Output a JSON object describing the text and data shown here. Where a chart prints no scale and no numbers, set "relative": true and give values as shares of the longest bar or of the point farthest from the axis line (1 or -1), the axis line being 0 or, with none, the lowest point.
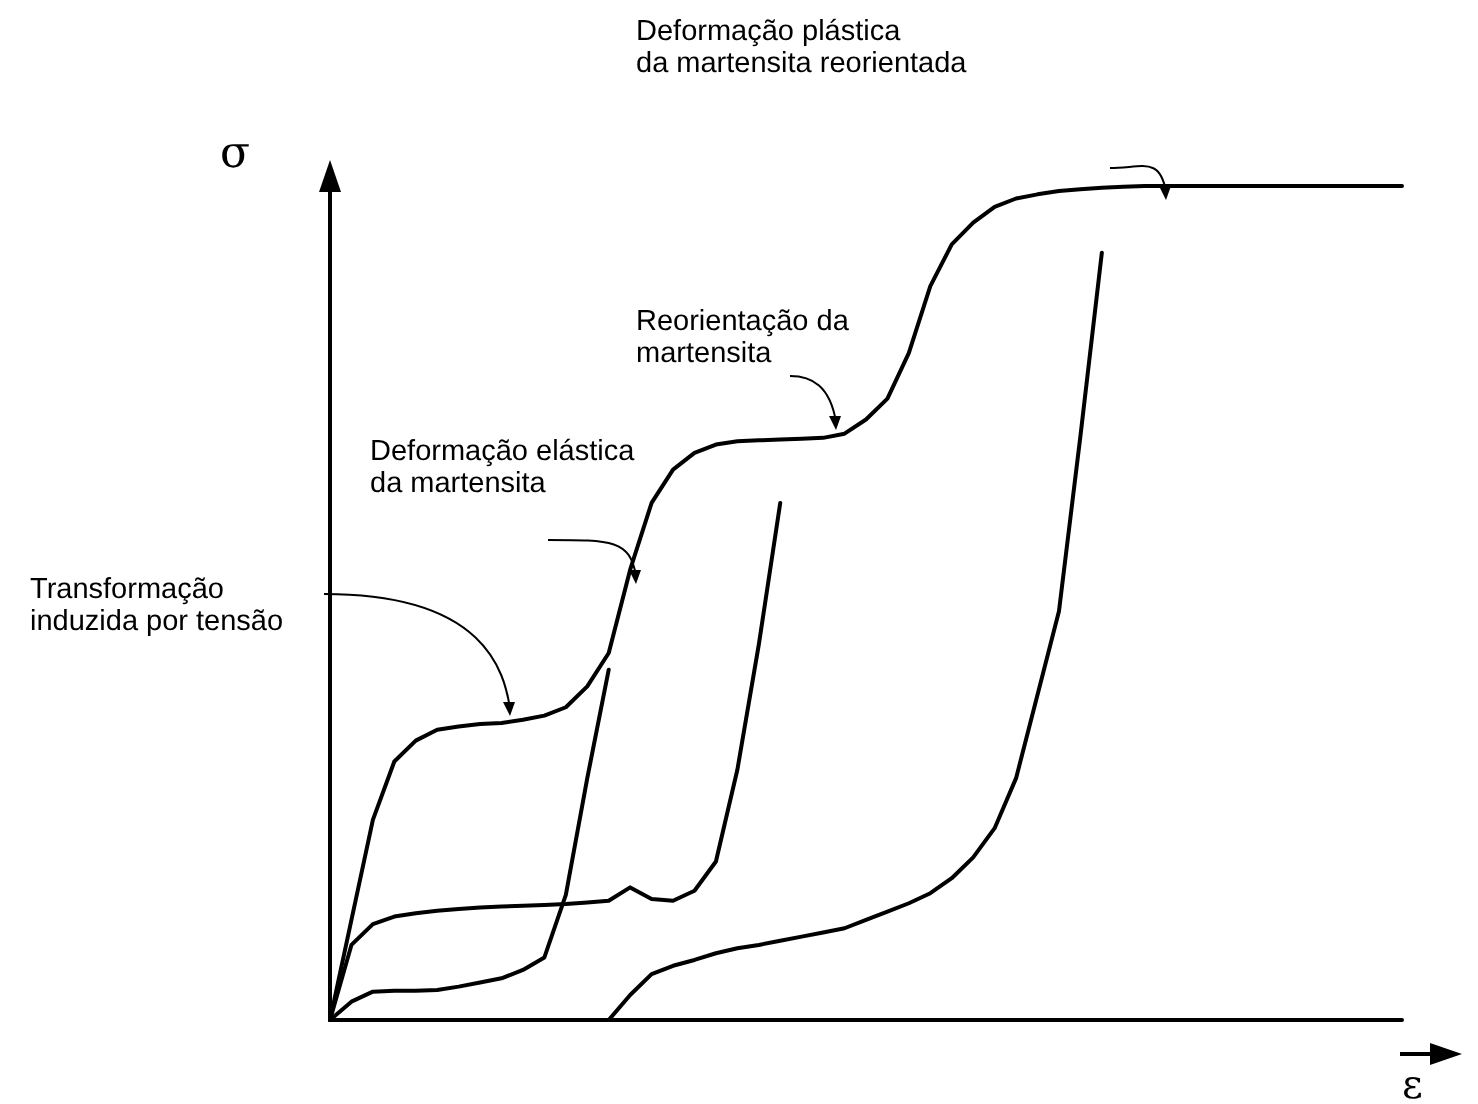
{
  "chart_data": {
    "type": "line",
    "relative": true,
    "xlabel": "ε",
    "ylabel": "σ",
    "grid": false,
    "marker": "none",
    "line_style": "solid",
    "categories": [
      null,
      null,
      null,
      null,
      null,
      null,
      null,
      null,
      null,
      null,
      null,
      null,
      null,
      null,
      null,
      null,
      null,
      null,
      null,
      null,
      null,
      null,
      null,
      null,
      null,
      null,
      null,
      null,
      null,
      null,
      null,
      null,
      null,
      null,
      null,
      null,
      null,
      null,
      null,
      null,
      null,
      null,
      null,
      null,
      null,
      null,
      null,
      null,
      null,
      null,
      null
    ],
    "series": [
      {
        "color": "#000000",
        "values": [
          0,
          0.12,
          0.24,
          0.31,
          0.335,
          0.348,
          0.352,
          0.355,
          0.356,
          0.36,
          0.365,
          0.375,
          0.4,
          0.44,
          0.54,
          0.62,
          0.66,
          0.68,
          0.69,
          0.694,
          0.695,
          0.696,
          0.697,
          0.698,
          0.703,
          0.72,
          0.745,
          0.8,
          0.88,
          0.93,
          0.956,
          0.975,
          0.985,
          0.99,
          0.994,
          0.996,
          0.998,
          0.999,
          1,
          1,
          1,
          1,
          1,
          1,
          1,
          1,
          1,
          1,
          1,
          1,
          1
        ]
      },
      {
        "color": "#000000",
        "values": [
          0,
          0.022,
          0.034,
          0.035,
          0.035,
          0.036,
          0.04,
          0.045,
          0.05,
          0.06,
          0.075,
          0.15,
          0.29,
          0.42,
          null,
          null,
          null,
          null,
          null,
          null,
          null,
          null,
          null,
          null,
          null,
          null,
          null,
          null,
          null,
          null,
          null,
          null,
          null,
          null,
          null,
          null,
          null,
          null,
          null,
          null,
          null,
          null,
          null,
          null,
          null,
          null,
          null,
          null,
          null,
          null,
          null
        ]
      },
      {
        "color": "#000000",
        "values": [
          0,
          0.09,
          0.115,
          0.124,
          0.128,
          0.131,
          0.133,
          0.135,
          0.136,
          0.137,
          0.138,
          0.139,
          0.141,
          0.143,
          0.159,
          0.145,
          0.143,
          0.155,
          0.19,
          0.3,
          0.45,
          0.62,
          null,
          null,
          null,
          null,
          null,
          null,
          null,
          null,
          null,
          null,
          null,
          null,
          null,
          null,
          null,
          null,
          null,
          null,
          null,
          null,
          null,
          null,
          null,
          null,
          null,
          null,
          null,
          null,
          null
        ]
      },
      {
        "color": "#000000",
        "values": [
          null,
          null,
          null,
          null,
          null,
          null,
          null,
          null,
          null,
          null,
          null,
          null,
          null,
          0,
          0.03,
          0.055,
          0.065,
          0.072,
          0.08,
          0.086,
          0.09,
          0.095,
          0.1,
          0.105,
          0.11,
          0.12,
          0.13,
          0.14,
          0.152,
          0.17,
          0.195,
          0.23,
          0.29,
          0.39,
          0.49,
          0.7,
          0.92,
          null,
          null,
          null,
          null,
          null,
          null,
          null,
          null,
          null,
          null,
          null,
          null,
          null,
          null
        ]
      }
    ],
    "annotations": [
      "Transformação\ninduzida por tensão",
      "Deformação elástica\nda martensita",
      "Reorientação da\nmartensita",
      "Deformação plástica\nda martensita reorientada"
    ]
  }
}
